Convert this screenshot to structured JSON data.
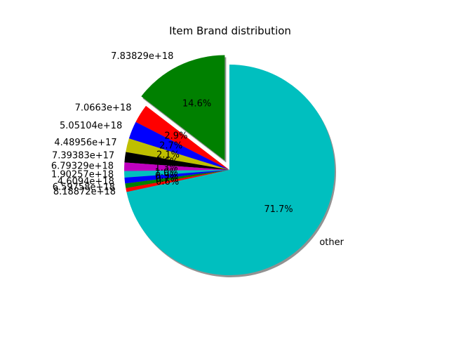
{
  "chart_data": {
    "type": "pie",
    "title": "Item Brand distribution",
    "autopct_format": "%1.1f%%",
    "shadow": true,
    "start_angle_deg": 90,
    "exploded_slice": "7.83829e+18",
    "slices": [
      {
        "label": "7.83829e+18",
        "percent": 14.6,
        "color": "#008000"
      },
      {
        "label": "7.0663e+18",
        "percent": 2.9,
        "color": "#ff0000"
      },
      {
        "label": "5.05104e+18",
        "percent": 2.7,
        "color": "#0000ff"
      },
      {
        "label": "4.48956e+17",
        "percent": 2.1,
        "color": "#bfbf00"
      },
      {
        "label": "7.39383e+17",
        "percent": 1.6,
        "color": "#000000"
      },
      {
        "label": "6.79329e+18",
        "percent": 1.3,
        "color": "#bf00bf"
      },
      {
        "label": "1.90257e+18",
        "percent": 1.0,
        "color": "#00bfbf"
      },
      {
        "label": "4.6094e+18",
        "percent": 0.9,
        "color": "#0000ff"
      },
      {
        "label": "6.59758e+18",
        "percent": 0.7,
        "color": "#008000"
      },
      {
        "label": "8.18872e+18",
        "percent": 0.6,
        "color": "#ff0000"
      },
      {
        "label": "other",
        "percent": 71.7,
        "color": "#00bfbf"
      }
    ]
  }
}
